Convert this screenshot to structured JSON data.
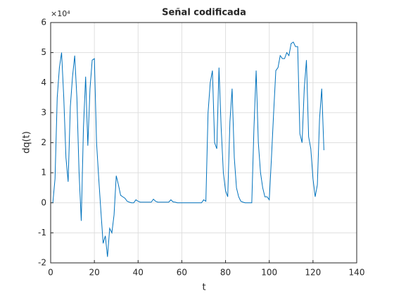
{
  "chart_data": {
    "type": "line",
    "title": "Señal codificada",
    "xlabel": "t",
    "ylabel": "dq(t)",
    "y_exponent": "×10⁴",
    "x": [
      1,
      2,
      3,
      4,
      5,
      6,
      7,
      8,
      9,
      10,
      11,
      12,
      13,
      14,
      15,
      16,
      17,
      18,
      19,
      20,
      21,
      22,
      23,
      24,
      25,
      26,
      27,
      28,
      29,
      30,
      31,
      32,
      33,
      34,
      35,
      36,
      37,
      38,
      39,
      40,
      41,
      42,
      43,
      44,
      45,
      46,
      47,
      48,
      49,
      50,
      51,
      52,
      53,
      54,
      55,
      56,
      57,
      58,
      59,
      60,
      61,
      62,
      63,
      64,
      65,
      66,
      67,
      68,
      69,
      70,
      71,
      72,
      73,
      74,
      75,
      76,
      77,
      78,
      79,
      80,
      81,
      82,
      83,
      84,
      85,
      86,
      87,
      88,
      89,
      90,
      91,
      92,
      93,
      94,
      95,
      96,
      97,
      98,
      99,
      100,
      101,
      102,
      103,
      104,
      105,
      106,
      107,
      108,
      109,
      110,
      111,
      112,
      113,
      114,
      115,
      116,
      117,
      118,
      119,
      120,
      121,
      122,
      123,
      124,
      125
    ],
    "series": [
      {
        "name": "dq(t)",
        "color": "#0072bd",
        "values": [
          0,
          0.8,
          3.5,
          4.5,
          5.0,
          3.5,
          1.5,
          0.7,
          3.2,
          4.2,
          4.9,
          3.5,
          1.0,
          -0.6,
          2.5,
          4.2,
          1.9,
          3.8,
          4.75,
          4.8,
          2.0,
          0.8,
          -0.3,
          -1.35,
          -1.1,
          -1.8,
          -0.85,
          -1.0,
          -0.4,
          0.9,
          0.6,
          0.25,
          0.2,
          0.15,
          0.05,
          0.02,
          0,
          0,
          0.1,
          0.05,
          0.02,
          0.02,
          0.02,
          0.02,
          0.02,
          0.02,
          0.12,
          0.05,
          0.02,
          0.02,
          0.02,
          0.02,
          0.02,
          0.02,
          0.1,
          0.03,
          0.02,
          0,
          0,
          0,
          0,
          0,
          0,
          0,
          0,
          0,
          0,
          0,
          0,
          0.1,
          0.05,
          3.0,
          4.0,
          4.4,
          2.0,
          1.8,
          4.5,
          2.5,
          1.0,
          0.4,
          0.2,
          2.7,
          3.8,
          1.5,
          0.5,
          0.2,
          0.05,
          0.02,
          0,
          0,
          0,
          0,
          2.5,
          4.4,
          2.0,
          1.0,
          0.5,
          0.2,
          0.2,
          0.1,
          1.5,
          3.0,
          4.4,
          4.5,
          4.9,
          4.8,
          4.8,
          5.0,
          4.9,
          5.3,
          5.35,
          5.2,
          5.2,
          2.3,
          2.0,
          3.8,
          4.75,
          2.2,
          1.8,
          0.8,
          0.2,
          0.6,
          2.8,
          3.8,
          1.75
        ]
      }
    ],
    "xlim": [
      0,
      140
    ],
    "xticks": [
      0,
      20,
      40,
      60,
      80,
      100,
      120,
      140
    ],
    "ylim": [
      -2,
      6
    ],
    "yticks": [
      -2,
      -1,
      0,
      1,
      2,
      3,
      4,
      5,
      6
    ],
    "grid": true
  }
}
